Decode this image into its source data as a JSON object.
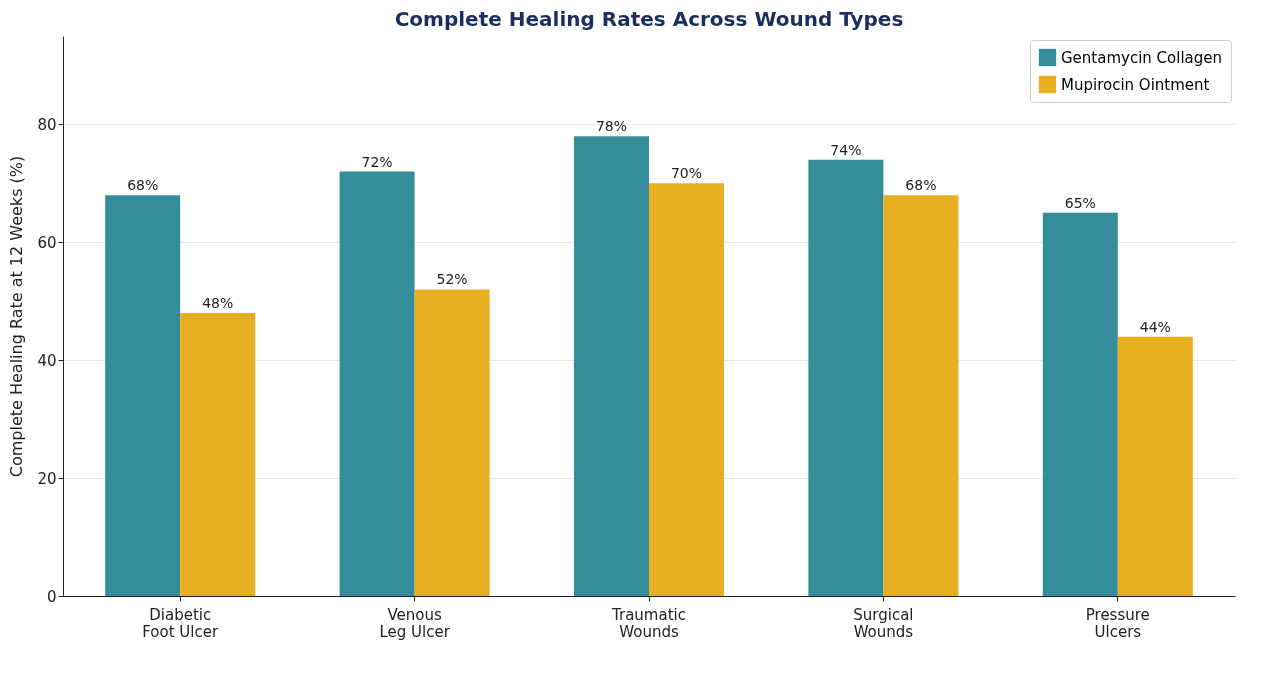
{
  "chart_data": {
    "type": "bar",
    "title": "Complete Healing Rates Across Wound Types",
    "ylabel": "Complete Healing Rate at 12 Weeks (%)",
    "categories": [
      "Diabetic\nFoot Ulcer",
      "Venous\nLeg Ulcer",
      "Traumatic\nWounds",
      "Surgical\nWounds",
      "Pressure\nUlcers"
    ],
    "series": [
      {
        "name": "Gentamycin Collagen",
        "color": "#358d9b",
        "values": [
          68,
          72,
          78,
          74,
          65
        ],
        "value_labels": [
          "68%",
          "72%",
          "78%",
          "74%",
          "65%"
        ]
      },
      {
        "name": "Mupirocin Ointment",
        "color": "#e8ae22",
        "values": [
          48,
          52,
          70,
          68,
          44
        ],
        "value_labels": [
          "48%",
          "52%",
          "70%",
          "68%",
          "44%"
        ]
      }
    ],
    "ylim": [
      0,
      95
    ],
    "yticks": [
      0,
      20,
      40,
      60,
      80
    ],
    "grid": "y",
    "legend": "top right"
  }
}
